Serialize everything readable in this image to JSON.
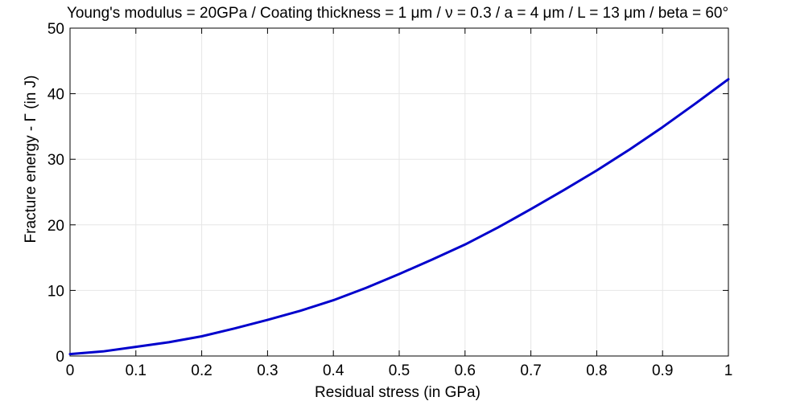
{
  "chart_data": {
    "type": "line",
    "title": "Young's modulus = 20GPa / Coating thickness = 1 μm / ν = 0.3 / a = 4 μm / L = 13 μm / beta = 60°",
    "xlabel": "Residual stress (in GPa)",
    "ylabel": "Fracture energy - Γ (in J)",
    "xlim": [
      0,
      1
    ],
    "ylim": [
      0,
      50
    ],
    "xticks": [
      "0",
      "0.1",
      "0.2",
      "0.3",
      "0.4",
      "0.5",
      "0.6",
      "0.7",
      "0.8",
      "0.9",
      "1"
    ],
    "yticks": [
      "0",
      "10",
      "20",
      "30",
      "40",
      "50"
    ],
    "grid": true,
    "colors": {
      "line": "#0000cc",
      "grid": "#e6e6e6",
      "axes": "#000000"
    },
    "series": [
      {
        "x": [
          0,
          0.05,
          0.1,
          0.15,
          0.2,
          0.25,
          0.3,
          0.35,
          0.4,
          0.45,
          0.5,
          0.55,
          0.6,
          0.65,
          0.7,
          0.75,
          0.8,
          0.85,
          0.9,
          0.95,
          1
        ],
        "values": [
          0.3,
          0.7,
          1.4,
          2.1,
          3.0,
          4.2,
          5.5,
          6.9,
          8.5,
          10.4,
          12.5,
          14.7,
          17.0,
          19.6,
          22.4,
          25.3,
          28.3,
          31.5,
          34.9,
          38.5,
          42.2
        ]
      }
    ]
  }
}
